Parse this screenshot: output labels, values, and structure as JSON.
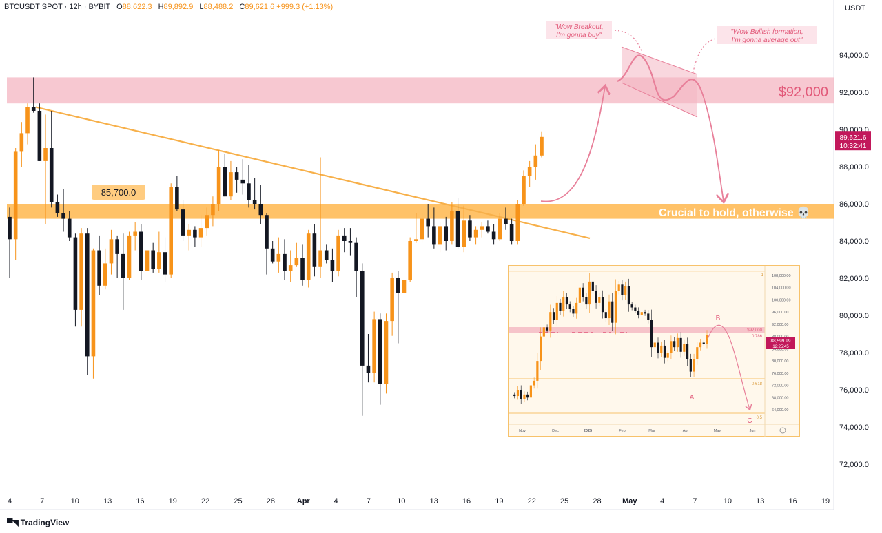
{
  "header": {
    "symbol": "BTCUSDT SPOT · 12h · BYBIT",
    "open_label": "O",
    "open": "88,622.3",
    "high_label": "H",
    "high": "89,892.9",
    "low_label": "L",
    "low": "88,488.2",
    "close_label": "C",
    "close": "89,621.6",
    "change": "+999.3 (+1.13%)"
  },
  "axis_unit": "USDT",
  "branding": "TradingView",
  "colors": {
    "bull": "#f7931a",
    "bear": "#131722",
    "zone_orange": "#ffb74d",
    "zone_red": "#f4b6c2",
    "arrow": "#e8809a",
    "trendline": "#f7b04a",
    "price_tag": "#c2185b"
  },
  "chart_data": [
    {
      "type": "candlestick",
      "title": "",
      "y_ticks": [
        "72,000.0",
        "74,000.0",
        "76,000.0",
        "78,000.0",
        "80,000.0",
        "82,000.0",
        "84,000.0",
        "86,000.0",
        "88,000.0",
        "90,000.0",
        "92,000.0",
        "94,000.0"
      ],
      "x_ticks": [
        "4",
        "7",
        "10",
        "13",
        "16",
        "19",
        "22",
        "25",
        "28",
        "Apr",
        "4",
        "7",
        "10",
        "13",
        "16",
        "19",
        "22",
        "25",
        "28",
        "May",
        "4",
        "7",
        "10",
        "13",
        "16",
        "19"
      ],
      "ylim": [
        71000,
        97000
      ],
      "last_price": "89,621.6",
      "countdown": "10:32:41",
      "ohlc": [
        [
          85300,
          85800,
          82000,
          84100
        ],
        [
          84100,
          89000,
          83000,
          88800
        ],
        [
          88800,
          90400,
          88000,
          89800
        ],
        [
          89800,
          91400,
          89200,
          91200
        ],
        [
          91200,
          92800,
          90900,
          91000
        ],
        [
          91000,
          91400,
          88300,
          88300
        ],
        [
          88300,
          90800,
          84900,
          89000
        ],
        [
          89000,
          91000,
          85800,
          86100
        ],
        [
          86100,
          86500,
          85300,
          85500
        ],
        [
          85500,
          86800,
          84500,
          85200
        ],
        [
          85200,
          85600,
          84000,
          84200
        ],
        [
          84200,
          84400,
          79400,
          80300
        ],
        [
          80300,
          84700,
          79400,
          84400
        ],
        [
          84400,
          84700,
          76800,
          77800
        ],
        [
          77800,
          83600,
          76600,
          83500
        ],
        [
          83500,
          84300,
          81100,
          81600
        ],
        [
          81600,
          83600,
          81400,
          82800
        ],
        [
          82800,
          84600,
          82200,
          84100
        ],
        [
          84100,
          84300,
          82000,
          83300
        ],
        [
          83300,
          84400,
          80300,
          82000
        ],
        [
          82000,
          84500,
          81900,
          84300
        ],
        [
          84300,
          85000,
          83500,
          84500
        ],
        [
          84500,
          84900,
          81900,
          82400
        ],
        [
          82400,
          84400,
          82200,
          83500
        ],
        [
          83500,
          83900,
          82300,
          82500
        ],
        [
          82500,
          84500,
          82300,
          83400
        ],
        [
          83400,
          84200,
          81800,
          82200
        ],
        [
          82200,
          87100,
          82000,
          86900
        ],
        [
          86900,
          87500,
          85600,
          85700
        ],
        [
          85700,
          86200,
          84000,
          84300
        ],
        [
          84300,
          84900,
          83500,
          84600
        ],
        [
          84600,
          84800,
          83700,
          84200
        ],
        [
          84200,
          85400,
          83700,
          84700
        ],
        [
          84700,
          85800,
          84300,
          85400
        ],
        [
          85400,
          86400,
          84800,
          86000
        ],
        [
          86000,
          88900,
          85600,
          88000
        ],
        [
          88000,
          88700,
          86400,
          86400
        ],
        [
          86400,
          88300,
          86200,
          87700
        ],
        [
          87700,
          88000,
          86600,
          87300
        ],
        [
          87300,
          88400,
          86500,
          87100
        ],
        [
          87100,
          88100,
          85800,
          86200
        ],
        [
          86200,
          87400,
          85700,
          86000
        ],
        [
          86000,
          87000,
          84900,
          85400
        ],
        [
          85400,
          85500,
          82200,
          83600
        ],
        [
          83600,
          84000,
          82800,
          82900
        ],
        [
          82900,
          84200,
          82300,
          83300
        ],
        [
          83300,
          84100,
          81900,
          82400
        ],
        [
          82400,
          83500,
          81800,
          82700
        ],
        [
          82700,
          83900,
          82600,
          83100
        ],
        [
          83100,
          83800,
          81600,
          81900
        ],
        [
          81900,
          84600,
          81500,
          84400
        ],
        [
          84400,
          84900,
          82100,
          82600
        ],
        [
          82600,
          88500,
          82000,
          83500
        ],
        [
          83500,
          83800,
          82800,
          83000
        ],
        [
          83000,
          83600,
          81800,
          82400
        ],
        [
          82400,
          84600,
          82100,
          84300
        ],
        [
          84300,
          84700,
          83400,
          84000
        ],
        [
          84000,
          84700,
          83200,
          83900
        ],
        [
          83900,
          84200,
          81000,
          82400
        ],
        [
          82400,
          82800,
          74600,
          77300
        ],
        [
          77300,
          79000,
          76400,
          76900
        ],
        [
          76900,
          80200,
          76400,
          79800
        ],
        [
          79800,
          80100,
          75200,
          76300
        ],
        [
          76300,
          80100,
          75800,
          79700
        ],
        [
          79700,
          82300,
          78900,
          82000
        ],
        [
          82000,
          82400,
          78500,
          81200
        ],
        [
          81200,
          83200,
          79600,
          81900
        ],
        [
          81900,
          84200,
          81800,
          84000
        ],
        [
          84000,
          85500,
          83900,
          84100
        ],
        [
          84100,
          85500,
          83900,
          85200
        ],
        [
          85200,
          86000,
          84200,
          84800
        ],
        [
          84800,
          85800,
          83600,
          83800
        ],
        [
          83800,
          85000,
          83400,
          84800
        ],
        [
          84800,
          85300,
          83500,
          84000
        ],
        [
          84000,
          86100,
          83800,
          85600
        ],
        [
          85600,
          86300,
          83600,
          83700
        ],
        [
          83700,
          85900,
          83400,
          85100
        ],
        [
          85100,
          85400,
          84000,
          84200
        ],
        [
          84200,
          84800,
          83800,
          84600
        ],
        [
          84600,
          85000,
          84200,
          84800
        ],
        [
          84800,
          85100,
          84400,
          84500
        ],
        [
          84500,
          84900,
          83800,
          84100
        ],
        [
          84100,
          85500,
          84000,
          85200
        ],
        [
          85200,
          85800,
          84600,
          84900
        ],
        [
          84900,
          85200,
          83800,
          84000
        ],
        [
          84000,
          86200,
          83800,
          86000
        ],
        [
          86000,
          87800,
          85900,
          87500
        ],
        [
          87500,
          88300,
          86900,
          88000
        ],
        [
          88000,
          89200,
          87300,
          88600
        ],
        [
          88600,
          89900,
          88500,
          89600
        ]
      ],
      "levels": [
        {
          "label": "85,700.0",
          "from": 85200,
          "to": 86000
        },
        {
          "label": "$92,000",
          "from": 91400,
          "to": 92800
        }
      ],
      "annotations": [
        {
          "text": "Crucial to hold, otherwise 💀"
        },
        {
          "text_lines": [
            "\"Wow Breakout,",
            "I'm gonna buy\""
          ]
        },
        {
          "text_lines": [
            "\"Wow Bullish formation,",
            "I'm gonna average out\""
          ]
        }
      ]
    },
    {
      "type": "candlestick",
      "title": "",
      "inset": true,
      "y_ticks": [
        "108,000.00",
        "104,000.00",
        "100,000.00",
        "96,000.00",
        "92,000.00",
        "88,000.00",
        "84,000.00",
        "80,000.00",
        "76,000.00",
        "72,000.00",
        "68,000.00",
        "64,000.00"
      ],
      "x_ticks": [
        "Nov",
        "Dec",
        "2025",
        "Feb",
        "Mar",
        "Apr",
        "May",
        "Jun"
      ],
      "price_tag": "88,599.99",
      "price_time": "12:25:45",
      "level_label": "$92,000",
      "fib_labels": [
        "0.786",
        "0.618",
        "0.5"
      ],
      "wave_labels": [
        "A",
        "B",
        "C"
      ],
      "corner_mark": "1",
      "close_path": [
        69000,
        68500,
        70500,
        67500,
        69000,
        68000,
        72000,
        73500,
        80000,
        88000,
        91000,
        90000,
        96000,
        93500,
        99000,
        96500,
        101000,
        98500,
        97000,
        95500,
        99000,
        104000,
        101000,
        98500,
        106000,
        103000,
        99000,
        101000,
        96000,
        94000,
        99500,
        92500,
        103000,
        105000,
        101500,
        104500,
        98500,
        97500,
        96500,
        95000,
        96000,
        95500,
        93500,
        84500,
        86000,
        82500,
        85000,
        81000,
        82500,
        86500,
        84500,
        87500,
        83000,
        85500,
        80500,
        76500,
        80500,
        84500,
        86000,
        85500,
        88600
      ],
      "wave_path_note": ""
    }
  ]
}
